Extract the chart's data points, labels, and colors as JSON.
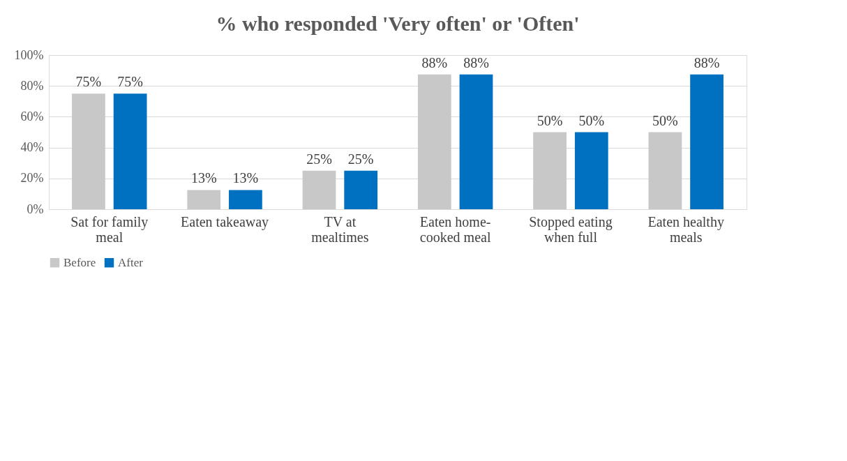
{
  "chart_data": {
    "type": "bar",
    "title": "% who responded 'Very often' or 'Often'",
    "categories": [
      "Sat for family meal",
      "Eaten takeaway",
      "TV at mealtimes",
      "Eaten home-cooked meal",
      "Stopped eating when full",
      "Eaten healthy meals"
    ],
    "series": [
      {
        "name": "Before",
        "color": "#c8c8c8",
        "values": [
          75,
          12.5,
          25,
          87.5,
          50,
          50
        ],
        "value_labels": [
          "75%",
          "13%",
          "25%",
          "88%",
          "50%",
          "50%"
        ]
      },
      {
        "name": "After",
        "color": "#0070c0",
        "values": [
          75,
          12.5,
          25,
          87.5,
          50,
          87.5
        ],
        "value_labels": [
          "75%",
          "13%",
          "25%",
          "88%",
          "50%",
          "88%"
        ]
      }
    ],
    "ylim": [
      0,
      100
    ],
    "yticks": [
      {
        "value": 0,
        "label": "0%"
      },
      {
        "value": 20,
        "label": "20%"
      },
      {
        "value": 40,
        "label": "40%"
      },
      {
        "value": 60,
        "label": "60%"
      },
      {
        "value": 80,
        "label": "80%"
      },
      {
        "value": 100,
        "label": "100%"
      }
    ],
    "grid": "y",
    "legend": "bottom"
  }
}
